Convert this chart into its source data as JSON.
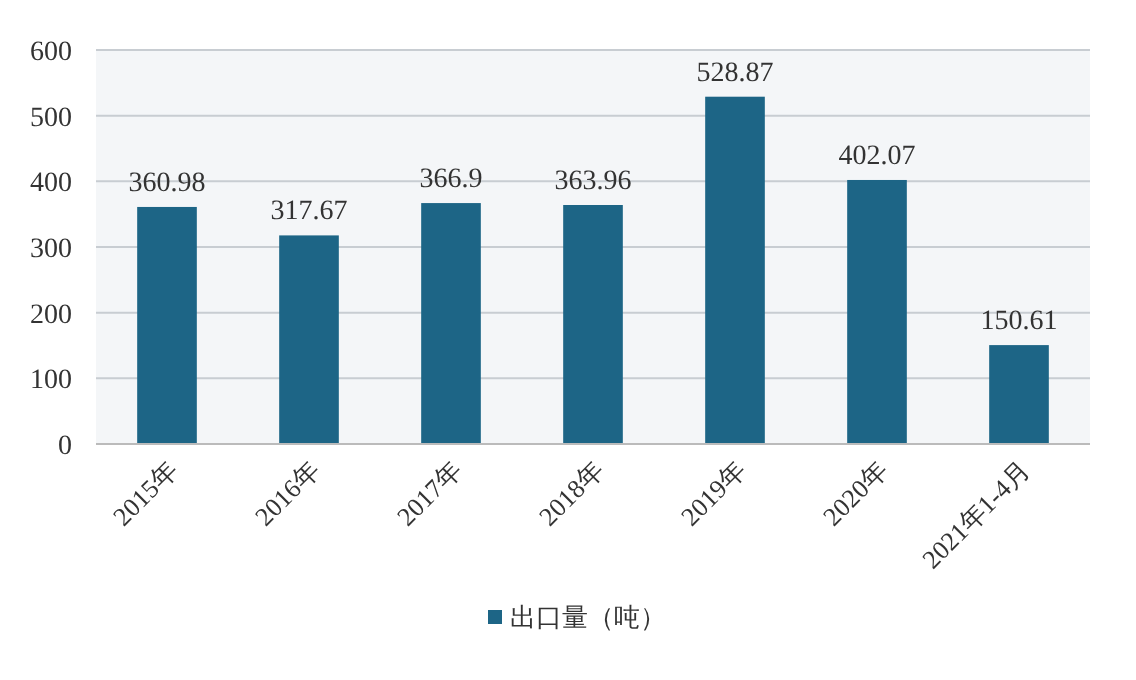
{
  "chart_data": {
    "type": "bar",
    "categories": [
      "2015年",
      "2016年",
      "2017年",
      "2018年",
      "2019年",
      "2020年",
      "2021年1-4月"
    ],
    "series": [
      {
        "name": "出口量（吨）",
        "color": "#1d6586",
        "values": [
          360.98,
          317.67,
          366.9,
          363.96,
          528.87,
          402.07,
          150.61
        ]
      }
    ],
    "ylim": [
      0,
      600
    ],
    "yticks": [
      0,
      100,
      200,
      300,
      400,
      500,
      600
    ],
    "grid": "y",
    "legend": "bottom",
    "data_labels": true
  }
}
